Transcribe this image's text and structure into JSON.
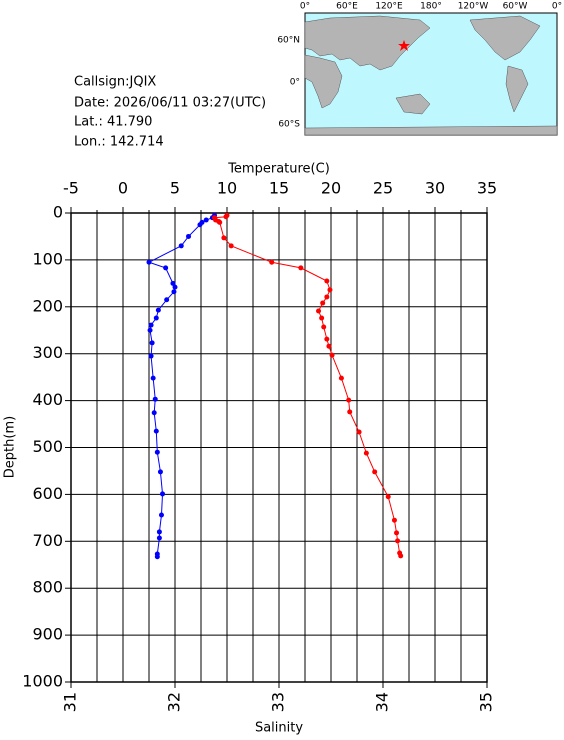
{
  "info": {
    "callsign": "Callsign:JQIX",
    "date": "Date:  2026/06/11 03:27(UTC)",
    "lat": "Lat.:  41.790",
    "lon": "Lon.:  142.714"
  },
  "map": {
    "xlabels": [
      "0°",
      "60°E",
      "120°E",
      "180°",
      "120°W",
      "60°W",
      "0°"
    ],
    "ylabels": [
      "60°N",
      "0°",
      "60°S"
    ]
  },
  "chart_data": {
    "type": "line",
    "x2label": "Temperature(C)",
    "xlabel": "Salinity",
    "ylabel": "Depth(m)",
    "x2lim": [
      -5,
      35
    ],
    "x2ticks": [
      -5,
      0,
      5,
      10,
      15,
      20,
      25,
      30,
      35
    ],
    "x2minor": [
      -2.5,
      2.5,
      7.5,
      12.5,
      17.5,
      22.5,
      27.5,
      32.5
    ],
    "xlim": [
      31,
      35
    ],
    "xticks": [
      31,
      32,
      33,
      34,
      35
    ],
    "ylim": [
      0,
      1000
    ],
    "y_inverted": true,
    "yticks": [
      0,
      100,
      200,
      300,
      400,
      500,
      600,
      700,
      800,
      900,
      1000
    ],
    "grid": true,
    "series": [
      {
        "color": "#0000ff",
        "axis": "x2",
        "x": [
          8.8,
          8.6,
          8.0,
          7.6,
          7.4,
          6.3,
          5.6,
          2.5,
          4.1,
          4.8,
          5.0,
          4.9,
          4.2,
          3.4,
          3.2,
          2.7,
          2.6,
          2.8,
          2.7,
          2.9,
          3.1,
          3.0,
          3.2,
          3.3,
          3.6,
          3.8,
          3.7,
          3.5,
          3.5,
          3.3,
          3.3
        ],
        "y": [
          5,
          10,
          15,
          20,
          25,
          50,
          70,
          105,
          117,
          150,
          158,
          168,
          185,
          207,
          224,
          239,
          250,
          277,
          305,
          352,
          397,
          426,
          465,
          510,
          552,
          599,
          644,
          680,
          693,
          727,
          733
        ]
      },
      {
        "color": "#ff0000",
        "axis": "x",
        "x": [
          32.5,
          32.49,
          32.38,
          32.39,
          32.42,
          32.43,
          32.47,
          32.54,
          32.93,
          33.21,
          33.46,
          33.49,
          33.46,
          33.42,
          33.38,
          33.41,
          33.43,
          33.46,
          33.48,
          33.51,
          33.6,
          33.67,
          33.68,
          33.77,
          33.84,
          33.92,
          34.05,
          34.11,
          34.13,
          34.14,
          34.16,
          34.17
        ],
        "y": [
          5,
          8,
          10,
          15,
          18,
          20,
          53,
          70,
          105,
          117,
          145,
          164,
          179,
          192,
          209,
          224,
          243,
          269,
          284,
          303,
          352,
          399,
          424,
          467,
          512,
          552,
          605,
          655,
          682,
          699,
          725,
          731
        ]
      }
    ]
  }
}
